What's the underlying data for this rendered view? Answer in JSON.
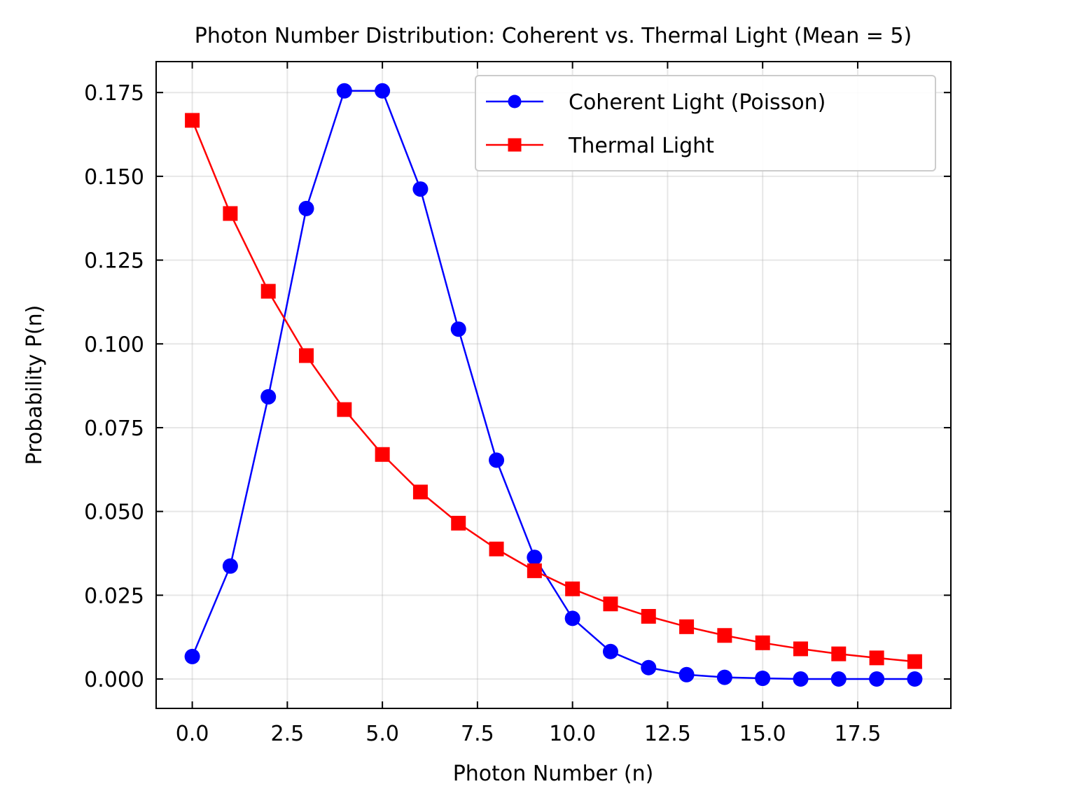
{
  "chart_data": {
    "type": "line",
    "title": "Photon Number Distribution: Coherent vs. Thermal Light (Mean = 5)",
    "xlabel": "Photon Number (n)",
    "ylabel": "Probability P(n)",
    "xlim": [
      -0.95,
      19.95
    ],
    "ylim": [
      -0.00877,
      0.18423
    ],
    "x_ticks": [
      0.0,
      2.5,
      5.0,
      7.5,
      10.0,
      12.5,
      15.0,
      17.5
    ],
    "x_tick_labels": [
      "0.0",
      "2.5",
      "5.0",
      "7.5",
      "10.0",
      "12.5",
      "15.0",
      "17.5"
    ],
    "y_ticks": [
      0.0,
      0.025,
      0.05,
      0.075,
      0.1,
      0.125,
      0.15,
      0.175
    ],
    "y_tick_labels": [
      "0.000",
      "0.025",
      "0.050",
      "0.075",
      "0.100",
      "0.125",
      "0.150",
      "0.175"
    ],
    "grid": true,
    "legend_position": "upper right",
    "x": [
      0,
      1,
      2,
      3,
      4,
      5,
      6,
      7,
      8,
      9,
      10,
      11,
      12,
      13,
      14,
      15,
      16,
      17,
      18,
      19
    ],
    "series": [
      {
        "name": "Coherent Light (Poisson)",
        "color": "#0000ff",
        "marker": "circle",
        "values": [
          0.0067,
          0.0337,
          0.0842,
          0.1404,
          0.1755,
          0.1755,
          0.1462,
          0.1044,
          0.0653,
          0.0363,
          0.0181,
          0.0082,
          0.0034,
          0.0013,
          0.0005,
          0.0002,
          0.0,
          0.0,
          0.0,
          0.0
        ]
      },
      {
        "name": "Thermal Light",
        "color": "#ff0000",
        "marker": "square",
        "values": [
          0.1667,
          0.1389,
          0.1157,
          0.0965,
          0.0804,
          0.067,
          0.0558,
          0.0465,
          0.0388,
          0.0323,
          0.0269,
          0.0224,
          0.0187,
          0.0156,
          0.013,
          0.0108,
          0.009,
          0.0075,
          0.0063,
          0.0052
        ]
      }
    ]
  }
}
